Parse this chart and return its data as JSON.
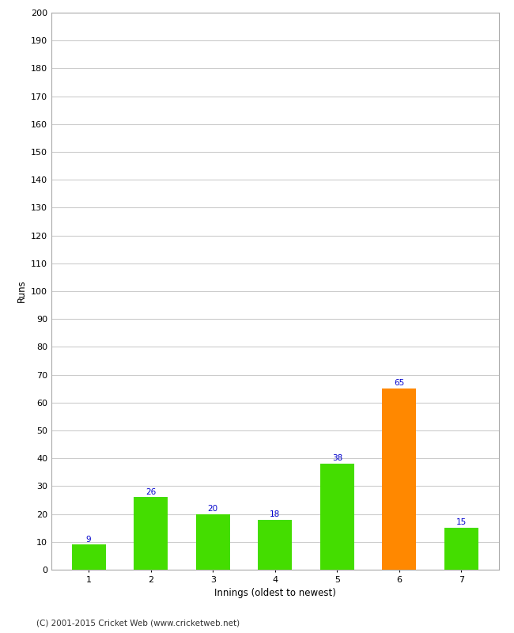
{
  "categories": [
    "1",
    "2",
    "3",
    "4",
    "5",
    "6",
    "7"
  ],
  "values": [
    9,
    26,
    20,
    18,
    38,
    65,
    15
  ],
  "bar_colors": [
    "#44dd00",
    "#44dd00",
    "#44dd00",
    "#44dd00",
    "#44dd00",
    "#ff8800",
    "#44dd00"
  ],
  "xlabel": "Innings (oldest to newest)",
  "ylabel": "Runs",
  "ylim": [
    0,
    200
  ],
  "yticks": [
    0,
    10,
    20,
    30,
    40,
    50,
    60,
    70,
    80,
    90,
    100,
    110,
    120,
    130,
    140,
    150,
    160,
    170,
    180,
    190,
    200
  ],
  "label_color": "#0000cc",
  "label_fontsize": 7.5,
  "axis_fontsize": 8.5,
  "tick_fontsize": 8,
  "footer": "(C) 2001-2015 Cricket Web (www.cricketweb.net)",
  "background_color": "#ffffff",
  "grid_color": "#cccccc",
  "bar_width": 0.55
}
